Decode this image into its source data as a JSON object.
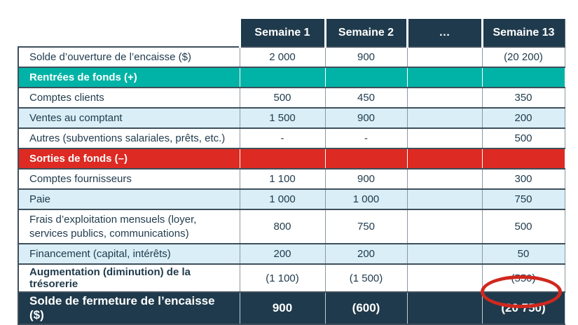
{
  "colors": {
    "header_navy": "#1f3a4c",
    "section_teal": "#00b3a6",
    "section_red": "#dd2a22",
    "row_light_blue": "#d9eef6",
    "text_navy": "#1f3a4c",
    "grid_dark": "#3e4f5b",
    "grid_gray": "#8a98a1",
    "highlight_red": "#d0281e"
  },
  "table": {
    "column_headers": [
      "Semaine 1",
      "Semaine 2",
      "…",
      "Semaine 13"
    ],
    "rows": [
      {
        "label": "Solde d’ouverture de l’encaisse ($)",
        "values": [
          "2 000",
          "900",
          "",
          "(20 200)"
        ]
      },
      {
        "label": "Rentrées de fonds (+)",
        "values": [
          "",
          "",
          "",
          ""
        ]
      },
      {
        "label": "Comptes clients",
        "values": [
          "500",
          "450",
          "",
          "350"
        ]
      },
      {
        "label": "Ventes au comptant",
        "values": [
          "1 500",
          "900",
          "",
          "200"
        ]
      },
      {
        "label": "Autres (subventions salariales, prêts, etc.)",
        "values": [
          "-",
          "-",
          "",
          "500"
        ]
      },
      {
        "label": "Sorties de fonds (–)",
        "values": [
          "",
          "",
          "",
          ""
        ]
      },
      {
        "label": "Comptes fournisseurs",
        "values": [
          "1 100",
          "900",
          "",
          "300"
        ]
      },
      {
        "label": "Paie",
        "values": [
          "1 000",
          "1 000",
          "",
          "750"
        ]
      },
      {
        "label": "Frais d’exploitation mensuels (loyer, services publics, communications)",
        "values": [
          "800",
          "750",
          "",
          "500"
        ]
      },
      {
        "label": "Financement (capital, intérêts)",
        "values": [
          "200",
          "200",
          "",
          "50"
        ]
      },
      {
        "label": "Augmentation (diminution) de la trésorerie",
        "values": [
          "(1 100)",
          "(1 500)",
          "",
          "(550)"
        ]
      },
      {
        "label": "Solde de fermeture de l’encaisse ($)",
        "values": [
          "900",
          "(600)",
          "",
          "(20 750)"
        ]
      }
    ]
  },
  "annotation": {
    "type": "ellipse",
    "circled_value": "(20 750)",
    "circled_column": "Semaine 13",
    "circled_row": "Solde de fermeture de l’encaisse ($)"
  }
}
